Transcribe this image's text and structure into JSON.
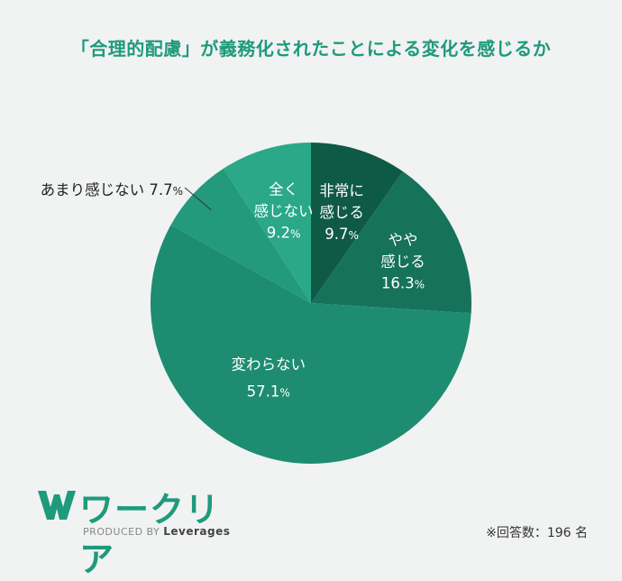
{
  "title": "「合理的配慮」が義務化されたことによる変化を感じるか",
  "logo": {
    "name": "ワークリア",
    "produced_by": "PRODUCED BY",
    "brand": "Leverages"
  },
  "note": "※回答数：196 名",
  "colors": {
    "title": "#1e9a7c",
    "logo": "#1e9a7c",
    "background": "#f1f2f2"
  },
  "chart_data": {
    "type": "pie",
    "title": "「合理的配慮」が義務化されたことによる変化を感じるか",
    "unit": "%",
    "slices": [
      {
        "label_lines": [
          "非常に",
          "感じる"
        ],
        "value": 9.7,
        "value_text": "9.7",
        "color": "#0f5a47"
      },
      {
        "label_lines": [
          "やや",
          "感じる"
        ],
        "value": 16.3,
        "value_text": "16.3",
        "color": "#16725b"
      },
      {
        "label_lines": [
          "変わらない"
        ],
        "value": 57.1,
        "value_text": "57.1",
        "color": "#1e8c70"
      },
      {
        "label_lines": [
          "あまり感じない"
        ],
        "value": 7.7,
        "value_text": "7.7",
        "color": "#229a7b",
        "outside": true
      },
      {
        "label_lines": [
          "全く",
          "感じない"
        ],
        "value": 9.2,
        "value_text": "9.2",
        "color": "#2aa888"
      }
    ],
    "start_angle_deg": 0,
    "direction": "clockwise",
    "legend": "none"
  }
}
